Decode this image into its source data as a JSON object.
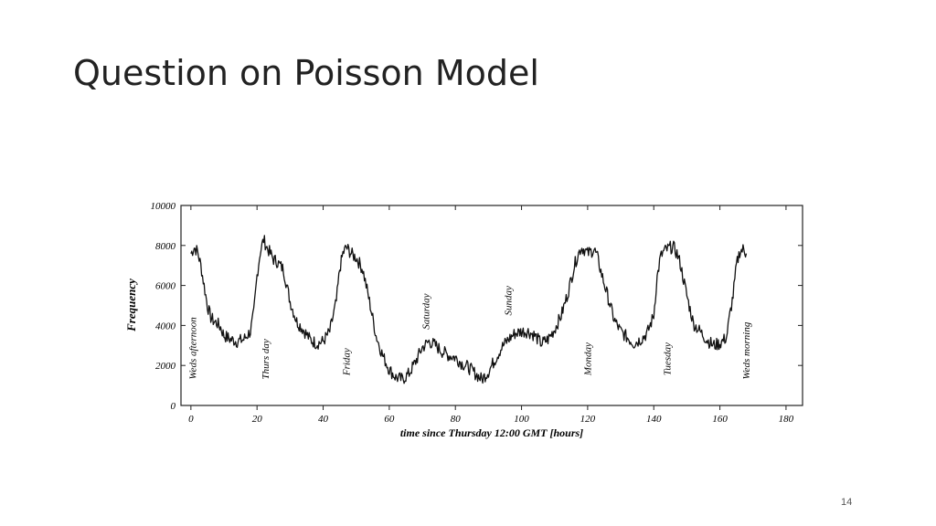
{
  "slide": {
    "title": "Question on Poisson Model",
    "page_number": "14"
  },
  "chart_data": {
    "type": "line",
    "title": "",
    "xlabel": "time since Thursday 12:00 GMT [hours]",
    "ylabel": "Frequency",
    "xlim": [
      -3,
      185
    ],
    "ylim": [
      0,
      10000
    ],
    "xticks": [
      0,
      20,
      40,
      60,
      80,
      100,
      120,
      140,
      160,
      180
    ],
    "yticks": [
      0,
      2000,
      4000,
      6000,
      8000,
      10000
    ],
    "grid": false,
    "legend": "none",
    "line_color": "#111111",
    "annotations": [
      {
        "text": "Weds afternoon",
        "x": 1.5,
        "y": 1300
      },
      {
        "text": "Thurs day",
        "x": 23.5,
        "y": 1300
      },
      {
        "text": "Friday",
        "x": 48,
        "y": 1500
      },
      {
        "text": "Saturday",
        "x": 72,
        "y": 3800
      },
      {
        "text": "Sunday",
        "x": 97,
        "y": 4500
      },
      {
        "text": "Monday",
        "x": 121,
        "y": 1500
      },
      {
        "text": "Tuesday",
        "x": 145,
        "y": 1500
      },
      {
        "text": "Weds morning",
        "x": 169,
        "y": 1300
      }
    ],
    "series": [
      {
        "x": [
          0,
          1,
          2,
          3,
          4,
          5,
          6,
          7,
          8,
          9,
          10,
          12,
          14,
          16,
          18,
          19,
          20,
          21,
          22,
          23,
          24,
          25,
          26,
          28,
          30,
          32,
          34,
          36,
          38,
          40,
          42,
          44,
          45,
          46,
          47,
          48,
          49,
          50,
          51,
          52,
          54,
          56,
          58,
          60,
          62,
          64,
          66,
          68,
          70,
          72,
          74,
          76,
          78,
          80,
          82,
          84,
          86,
          88,
          90,
          92,
          94,
          96,
          98,
          100,
          102,
          104,
          106,
          108,
          110,
          112,
          114,
          116,
          117,
          118,
          119,
          120,
          121,
          122,
          123,
          124,
          126,
          128,
          130,
          132,
          134,
          136,
          138,
          140,
          141,
          142,
          143,
          144,
          145,
          146,
          147,
          148,
          150,
          152,
          154,
          156,
          158,
          160,
          162,
          163,
          164,
          165,
          166,
          167,
          168
        ],
        "y": [
          7600,
          7900,
          7700,
          7000,
          6000,
          5000,
          4400,
          4200,
          4100,
          3900,
          3500,
          3300,
          3200,
          3300,
          3700,
          4600,
          6500,
          7700,
          8300,
          7900,
          7600,
          7300,
          7200,
          6800,
          5200,
          4200,
          3800,
          3300,
          3100,
          3200,
          3700,
          5200,
          6800,
          7600,
          7900,
          7700,
          7500,
          7400,
          7100,
          6800,
          5200,
          3500,
          2500,
          1800,
          1400,
          1300,
          1600,
          2200,
          2900,
          3200,
          3000,
          2700,
          2500,
          2400,
          2100,
          1900,
          1600,
          1300,
          1700,
          2300,
          2900,
          3300,
          3600,
          3700,
          3700,
          3500,
          3100,
          3300,
          3800,
          4500,
          5600,
          7000,
          7500,
          7900,
          7800,
          7600,
          7700,
          7800,
          7400,
          6700,
          5500,
          4300,
          3700,
          3400,
          3100,
          3300,
          3600,
          4500,
          6400,
          7400,
          7700,
          7800,
          7900,
          7900,
          7600,
          7100,
          5500,
          4100,
          3700,
          3300,
          3000,
          3100,
          3400,
          4500,
          5500,
          7000,
          7700,
          7800,
          7600
        ]
      }
    ]
  }
}
